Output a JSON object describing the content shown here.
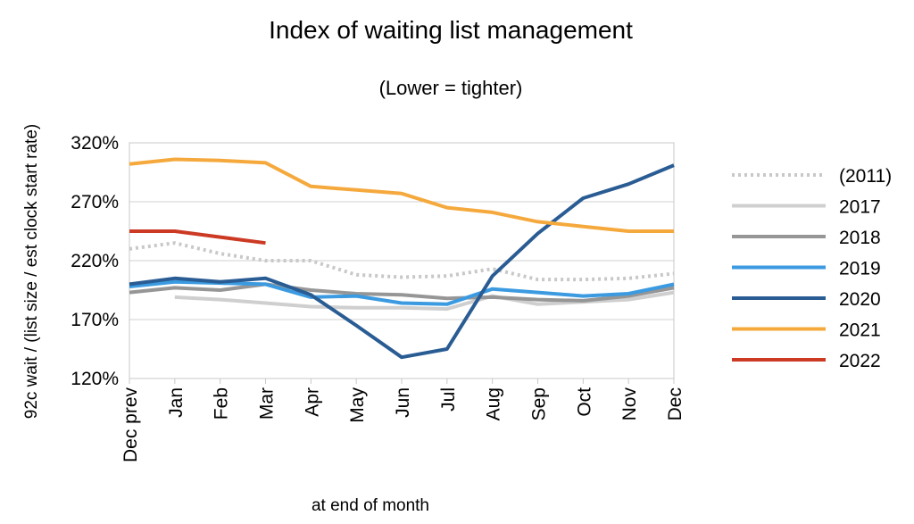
{
  "chart_data": {
    "type": "line",
    "title": "Index of waiting list management",
    "subtitle": "(Lower = tighter)",
    "xlabel": "at end of month",
    "ylabel": "92c wait / (list size / est clock start rate)",
    "categories": [
      "Dec prev",
      "Jan",
      "Feb",
      "Mar",
      "Apr",
      "May",
      "Jun",
      "Jul",
      "Aug",
      "Sep",
      "Oct",
      "Nov",
      "Dec"
    ],
    "yticks": [
      "120%",
      "170%",
      "220%",
      "270%",
      "320%"
    ],
    "ylim": [
      1.2,
      3.2
    ],
    "grid": true,
    "legend_position": "right",
    "series": [
      {
        "name": "(2011)",
        "color": "#c8c8c8",
        "dash": "dotted",
        "values": [
          2.3,
          2.35,
          2.26,
          2.2,
          2.2,
          2.08,
          2.06,
          2.07,
          2.13,
          2.04,
          2.04,
          2.05,
          2.09
        ]
      },
      {
        "name": "2017",
        "color": "#cfcfcf",
        "dash": "solid",
        "values": [
          null,
          1.89,
          1.87,
          1.84,
          1.81,
          1.8,
          1.8,
          1.79,
          1.9,
          1.83,
          1.85,
          1.87,
          1.93
        ]
      },
      {
        "name": "2018",
        "color": "#969696",
        "dash": "solid",
        "values": [
          1.93,
          1.97,
          1.95,
          2.0,
          1.95,
          1.92,
          1.91,
          1.88,
          1.89,
          1.87,
          1.86,
          1.9,
          1.97
        ]
      },
      {
        "name": "2019",
        "color": "#3b9ae0",
        "dash": "solid",
        "values": [
          1.98,
          2.02,
          2.01,
          2.0,
          1.89,
          1.9,
          1.84,
          1.83,
          1.96,
          1.93,
          1.9,
          1.92,
          2.0
        ]
      },
      {
        "name": "2020",
        "color": "#2a5c94",
        "dash": "solid",
        "values": [
          2.0,
          2.05,
          2.02,
          2.05,
          1.91,
          1.65,
          1.38,
          1.45,
          2.07,
          2.43,
          2.73,
          2.85,
          3.01
        ]
      },
      {
        "name": "2021",
        "color": "#f5a93d",
        "dash": "solid",
        "values": [
          3.02,
          3.06,
          3.05,
          3.03,
          2.83,
          2.8,
          2.77,
          2.65,
          2.61,
          2.53,
          2.49,
          2.45,
          2.45
        ]
      },
      {
        "name": "2022",
        "color": "#cc3a24",
        "dash": "solid",
        "values": [
          2.45,
          2.45,
          2.4,
          2.35,
          null,
          null,
          null,
          null,
          null,
          null,
          null,
          null,
          null
        ]
      }
    ]
  }
}
